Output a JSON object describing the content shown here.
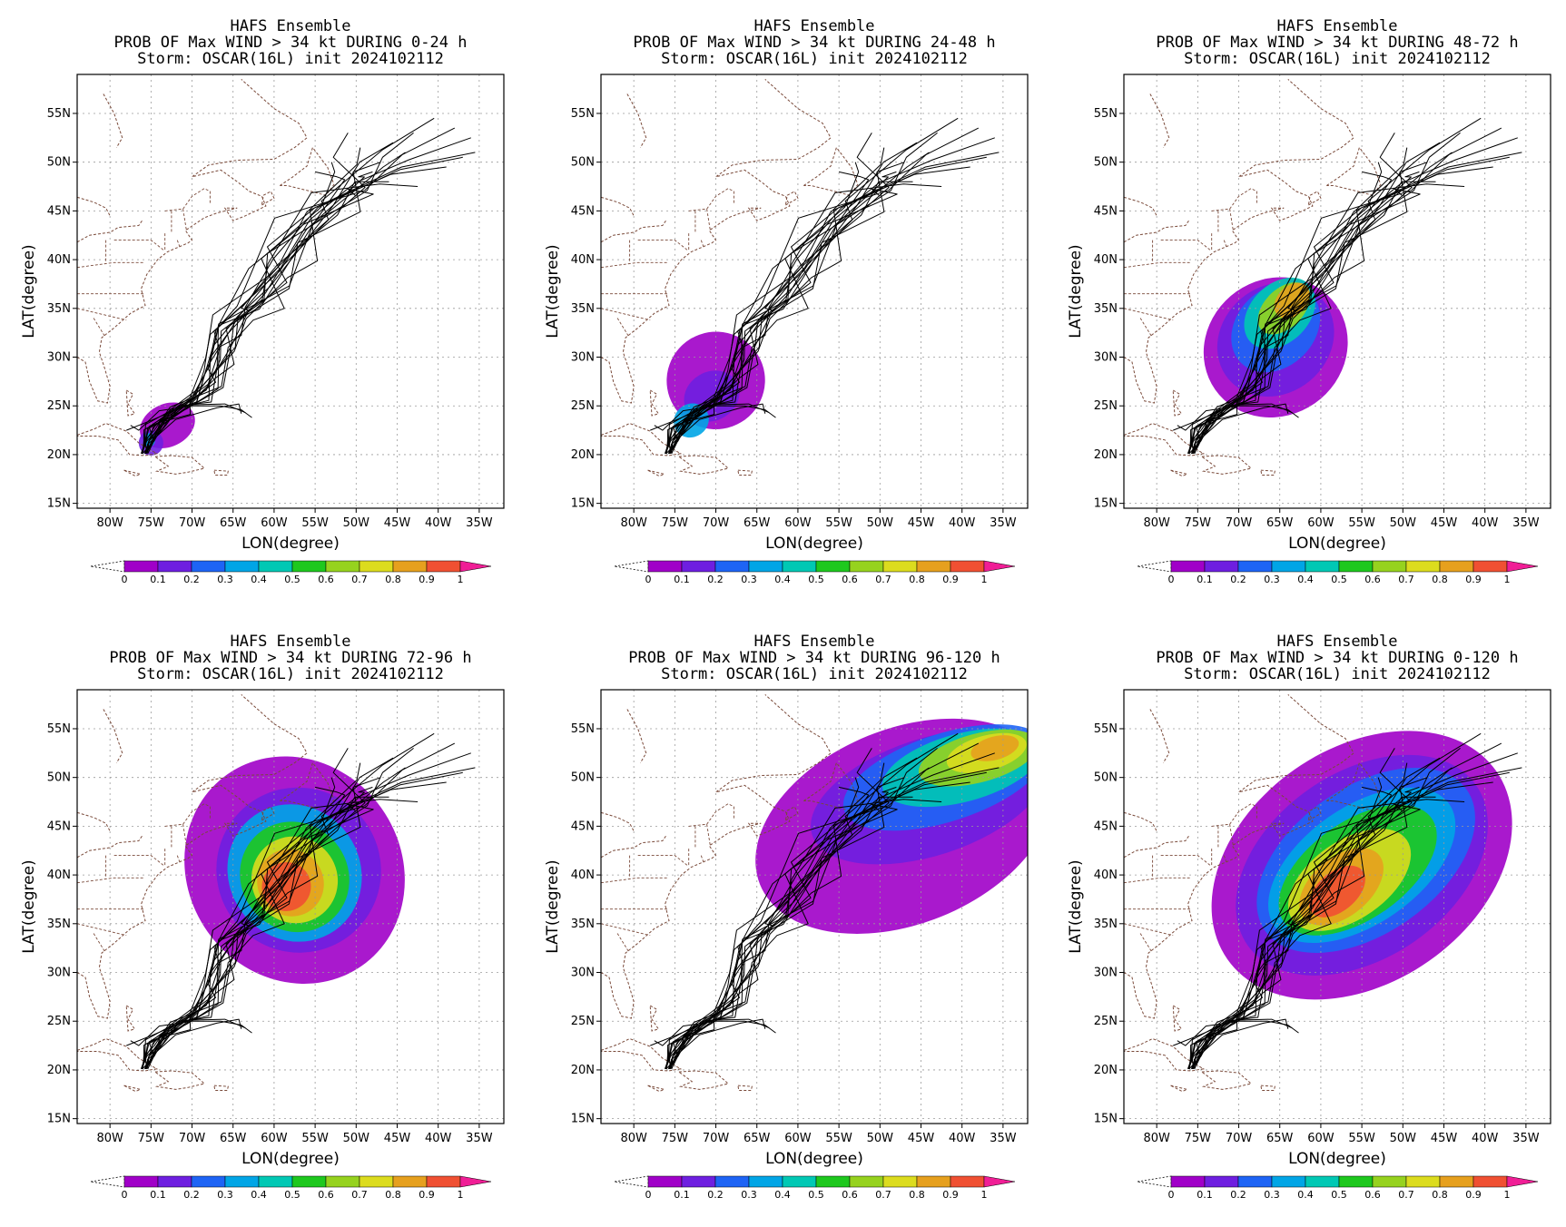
{
  "figure": {
    "panels": [
      {
        "title": [
          "HAFS Ensemble",
          "PROB OF Max WIND > 34 kt DURING  0-24 h",
          "Storm: OSCAR(16L) init 2024102112"
        ],
        "stage": 1
      },
      {
        "title": [
          "HAFS Ensemble",
          "PROB OF Max WIND > 34 kt DURING 24-48 h",
          "Storm: OSCAR(16L) init 2024102112"
        ],
        "stage": 2
      },
      {
        "title": [
          "HAFS Ensemble",
          "PROB OF Max WIND > 34 kt DURING 48-72 h",
          "Storm: OSCAR(16L) init 2024102112"
        ],
        "stage": 3
      },
      {
        "title": [
          "HAFS Ensemble",
          "PROB OF Max WIND > 34 kt DURING 72-96 h",
          "Storm: OSCAR(16L) init 2024102112"
        ],
        "stage": 4
      },
      {
        "title": [
          "HAFS Ensemble",
          "PROB OF Max WIND > 34 kt DURING 96-120 h",
          "Storm: OSCAR(16L) init 2024102112"
        ],
        "stage": 5
      },
      {
        "title": [
          "HAFS Ensemble",
          "PROB OF Max WIND > 34 kt DURING 0-120 h",
          "Storm: OSCAR(16L) init 2024102112"
        ],
        "stage": 6
      }
    ],
    "lon_ticks": [
      "80W",
      "75W",
      "70W",
      "65W",
      "60W",
      "55W",
      "50W",
      "45W",
      "40W",
      "35W"
    ],
    "lat_ticks": [
      "15N",
      "20N",
      "25N",
      "30N",
      "35N",
      "40N",
      "45N",
      "50N",
      "55N"
    ],
    "xlabel": "LON(degree)",
    "ylabel": "LAT(degree)",
    "colorbar": {
      "labels": [
        "0",
        "0.1",
        "0.2",
        "0.3",
        "0.4",
        "0.5",
        "0.6",
        "0.7",
        "0.8",
        "0.9",
        "1"
      ],
      "colors": [
        "#a000c8",
        "#6e1fe0",
        "#1e64f5",
        "#00a5e6",
        "#00c8b4",
        "#1ec81e",
        "#96d21e",
        "#dcdc1e",
        "#e6a01e",
        "#f05032",
        "#f01e96"
      ]
    }
  }
}
